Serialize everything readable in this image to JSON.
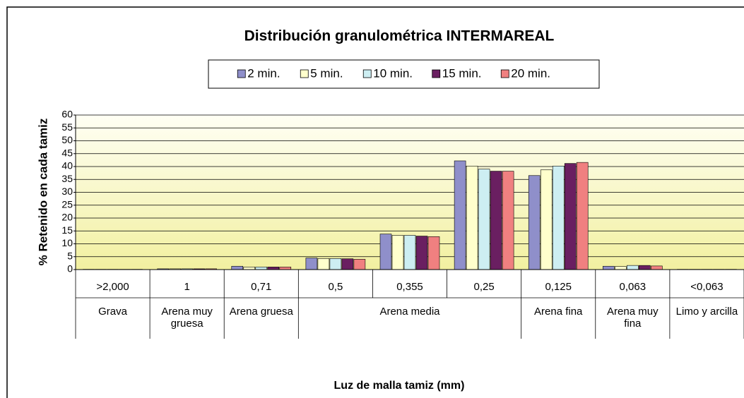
{
  "chart_data": {
    "type": "bar",
    "title": "Distribución granulométrica INTERMAREAL",
    "x_label": "Luz de malla tamiz (mm)",
    "y_label": "% Retenido en cada tamiz",
    "categories": [
      ">2,000",
      "1",
      "0,71",
      "0,5",
      "0,355",
      "0,25",
      "0,125",
      "0,063",
      "<0,063"
    ],
    "groups": [
      {
        "label": "Grava",
        "categories": [
          ">2,000"
        ]
      },
      {
        "label": "Arena muy gruesa",
        "categories": [
          "1"
        ]
      },
      {
        "label": "Arena gruesa",
        "categories": [
          "0,71"
        ]
      },
      {
        "label": "Arena media",
        "categories": [
          "0,5",
          "0,355",
          "0,25"
        ]
      },
      {
        "label": "Arena fina",
        "categories": [
          "0,125"
        ]
      },
      {
        "label": "Arena muy fina",
        "categories": [
          "0,063"
        ]
      },
      {
        "label": "Limo y arcilla",
        "categories": [
          "<0,063"
        ]
      }
    ],
    "series": [
      {
        "name": "2 min.",
        "color": "#8f8fca",
        "values": [
          0.1,
          0.3,
          1.3,
          4.5,
          13.8,
          42.2,
          36.5,
          1.3,
          0.1
        ]
      },
      {
        "name": "5 min.",
        "color": "#ffffcc",
        "values": [
          0.1,
          0.3,
          1.0,
          4.3,
          13.3,
          40.2,
          38.7,
          1.2,
          0.1
        ]
      },
      {
        "name": "10 min.",
        "color": "#cdeef2",
        "values": [
          0.1,
          0.3,
          1.0,
          4.3,
          13.3,
          39.0,
          40.2,
          1.6,
          0.1
        ]
      },
      {
        "name": "15 min.",
        "color": "#6a1f61",
        "values": [
          0.1,
          0.3,
          1.0,
          4.2,
          13.0,
          38.2,
          41.2,
          1.6,
          0.1
        ]
      },
      {
        "name": "20 min.",
        "color": "#f08080",
        "values": [
          0.1,
          0.3,
          1.0,
          4.0,
          12.8,
          38.2,
          41.6,
          1.4,
          0.1
        ]
      }
    ],
    "ylim": [
      0,
      60
    ],
    "yticks": [
      0,
      5,
      10,
      15,
      20,
      25,
      30,
      35,
      40,
      45,
      50,
      55,
      60
    ],
    "grid": true,
    "legend": "top"
  }
}
